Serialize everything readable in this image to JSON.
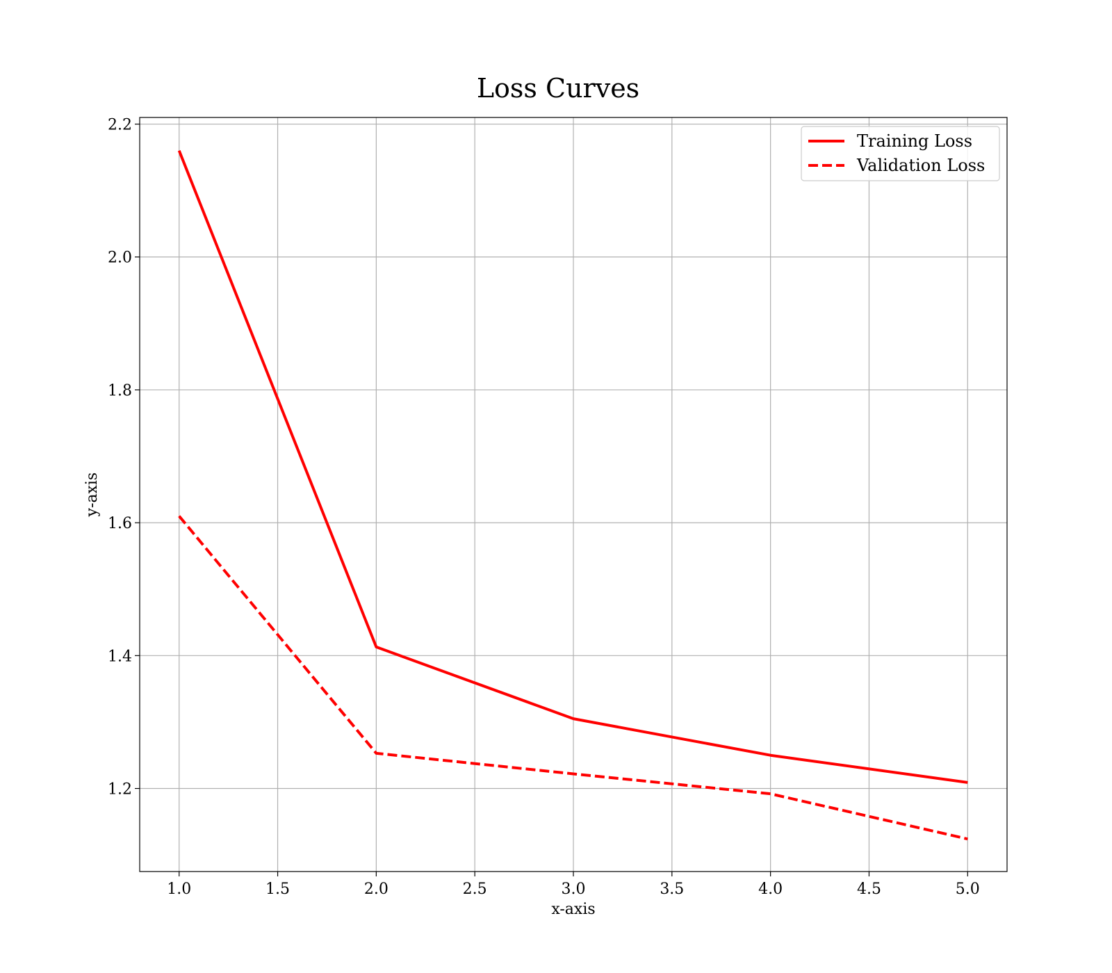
{
  "chart_data": {
    "type": "line",
    "title": "Loss Curves",
    "xlabel": "x-axis",
    "ylabel": "y-axis",
    "xlim": [
      0.8,
      5.2
    ],
    "ylim": [
      1.075,
      2.21
    ],
    "xticks": [
      1.0,
      1.5,
      2.0,
      2.5,
      3.0,
      3.5,
      4.0,
      4.5,
      5.0
    ],
    "xtick_labels": [
      "1.0",
      "1.5",
      "2.0",
      "2.5",
      "3.0",
      "3.5",
      "4.0",
      "4.5",
      "5.0"
    ],
    "yticks": [
      1.2,
      1.4,
      1.6,
      1.8,
      2.0,
      2.2
    ],
    "ytick_labels": [
      "1.2",
      "1.4",
      "1.6",
      "1.8",
      "2.0",
      "2.2"
    ],
    "grid": true,
    "legend_position": "top-right",
    "x": [
      1,
      2,
      3,
      4,
      5
    ],
    "series": [
      {
        "name": "Training Loss",
        "values": [
          2.16,
          1.413,
          1.305,
          1.25,
          1.209
        ],
        "color": "#ff0000",
        "style": "solid"
      },
      {
        "name": "Validation Loss",
        "values": [
          1.61,
          1.253,
          1.222,
          1.192,
          1.124
        ],
        "color": "#ff0000",
        "style": "dashed"
      }
    ]
  }
}
